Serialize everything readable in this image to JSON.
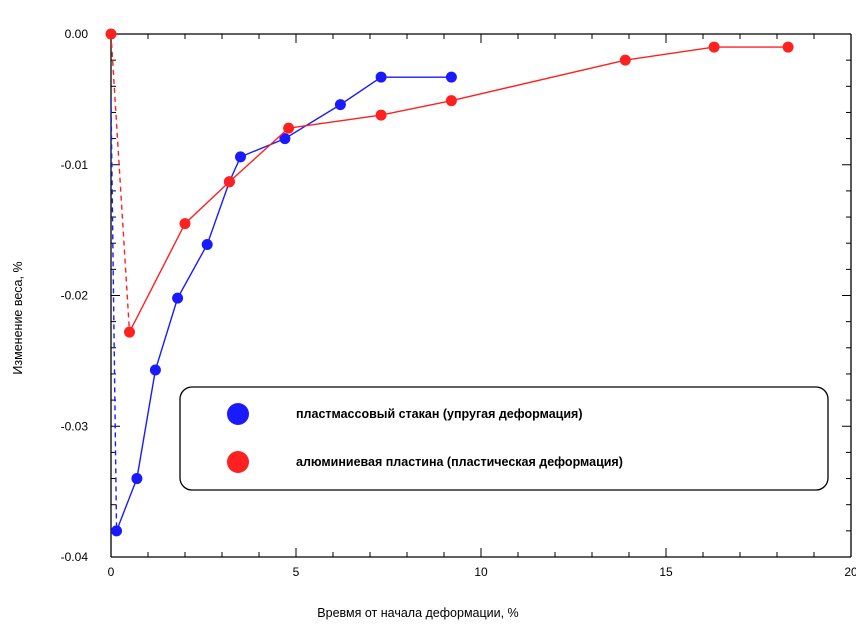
{
  "chart_data": {
    "type": "line",
    "title": "",
    "xlabel": "Вревмя от начала деформации, %",
    "ylabel": "Изменение веса, %",
    "xlim": [
      0,
      20
    ],
    "ylim": [
      -0.04,
      0.0
    ],
    "x_ticks": [
      "0",
      "5",
      "10",
      "15",
      "20"
    ],
    "y_ticks": [
      "0.00",
      "-0.01",
      "-0.02",
      "-0.03",
      "-0.04"
    ],
    "grid": false,
    "legend_position": "lower-right",
    "series": [
      {
        "name": "пластмассовый стакан (упругая деформация)",
        "color": "#1a1aff",
        "dashed_drop": {
          "x": [
            0.0,
            0.15
          ],
          "y": [
            -0.005,
            -0.038
          ]
        },
        "x": [
          0.15,
          0.7,
          1.2,
          1.8,
          2.6,
          3.2,
          3.5,
          4.7,
          6.2,
          7.3,
          9.2
        ],
        "y": [
          -0.038,
          -0.034,
          -0.0257,
          -0.0202,
          -0.0161,
          -0.0113,
          -0.0094,
          -0.008,
          -0.0054,
          -0.0033,
          -0.0033
        ]
      },
      {
        "name": "алюминиевая пластина (пластическая деформация)",
        "color": "#ff2020",
        "dashed_drop": {
          "x": [
            0.0,
            0.5
          ],
          "y": [
            0.0,
            -0.0228
          ]
        },
        "x": [
          0.5,
          2.0,
          3.2,
          4.8,
          7.3,
          9.2,
          13.9,
          16.3,
          18.3
        ],
        "y": [
          -0.0228,
          -0.0145,
          -0.0113,
          -0.0072,
          -0.0062,
          -0.0051,
          -0.002,
          -0.001,
          -0.001
        ]
      }
    ]
  }
}
